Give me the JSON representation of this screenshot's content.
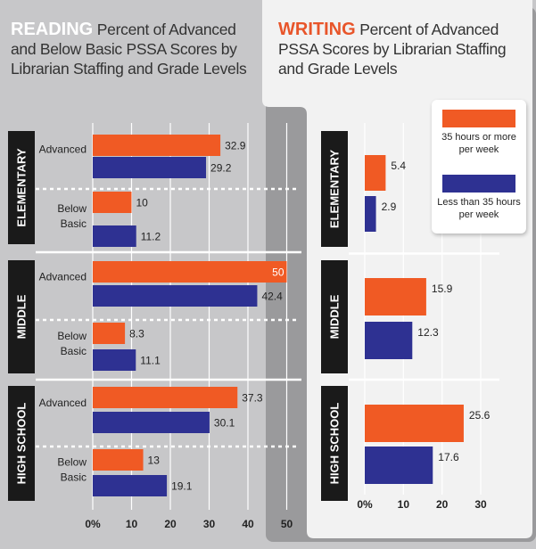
{
  "titles": {
    "reading_keyword": "READING",
    "reading_text": "Percent of Advanced and Below Basic PSSA Scores by Librarian Staffing and Grade Levels",
    "writing_keyword": "WRITING",
    "writing_text": "Percent of Advanced PSSA Scores by Librarian Staffing and Grade Levels"
  },
  "legend": {
    "items": [
      {
        "label": "35 hours or more per week",
        "color": "#f05a24"
      },
      {
        "label": "Less than 35 hours per week",
        "color": "#2e3192"
      }
    ]
  },
  "colors": {
    "orange": "#f05a24",
    "blue": "#2e3192",
    "background": "#c7c7c9",
    "writing_panel": "#f2f2f2",
    "band": "#1a1a1a",
    "grid": "#ffffff"
  },
  "chart_data": [
    {
      "type": "bar",
      "orientation": "horizontal",
      "title": "READING Percent of Advanced and Below Basic PSSA Scores by Librarian Staffing and Grade Levels",
      "xlim": [
        0,
        50
      ],
      "x_ticks": [
        "0%",
        "10",
        "20",
        "30",
        "40",
        "50"
      ],
      "grid": true,
      "groups": [
        {
          "name": "ELEMENTARY",
          "rows": [
            {
              "label": "Advanced",
              "values": [
                32.9,
                29.2
              ]
            },
            {
              "label": "Below Basic",
              "values": [
                10,
                11.2
              ]
            }
          ]
        },
        {
          "name": "MIDDLE",
          "rows": [
            {
              "label": "Advanced",
              "values": [
                50,
                42.4
              ]
            },
            {
              "label": "Below Basic",
              "values": [
                8.3,
                11.1
              ]
            }
          ]
        },
        {
          "name": "HIGH SCHOOL",
          "rows": [
            {
              "label": "Advanced",
              "values": [
                37.3,
                30.1
              ]
            },
            {
              "label": "Below Basic",
              "values": [
                13,
                19.1
              ]
            }
          ]
        }
      ],
      "series": [
        {
          "name": "35 hours or more per week",
          "color": "#f05a24"
        },
        {
          "name": "Less than 35 hours per week",
          "color": "#2e3192"
        }
      ],
      "value_labels": [
        [
          "32.9",
          "29.2",
          "10",
          "11.2"
        ],
        [
          "50",
          "42.4",
          "8.3",
          "11.1"
        ],
        [
          "37.3",
          "30.1",
          "13",
          "19.1"
        ]
      ]
    },
    {
      "type": "bar",
      "orientation": "horizontal",
      "title": "WRITING Percent of Advanced PSSA Scores by Librarian Staffing and Grade Levels",
      "xlim": [
        0,
        30
      ],
      "x_ticks": [
        "0%",
        "10",
        "20",
        "30"
      ],
      "grid": true,
      "legend_position": "top-right",
      "groups": [
        {
          "name": "ELEMENTARY",
          "values": [
            5.4,
            2.9
          ]
        },
        {
          "name": "MIDDLE",
          "values": [
            15.9,
            12.3
          ]
        },
        {
          "name": "HIGH SCHOOL",
          "values": [
            25.6,
            17.6
          ]
        }
      ],
      "series": [
        {
          "name": "35 hours or more per week",
          "color": "#f05a24"
        },
        {
          "name": "Less than 35 hours per week",
          "color": "#2e3192"
        }
      ],
      "value_labels": [
        [
          "5.4",
          "2.9"
        ],
        [
          "15.9",
          "12.3"
        ],
        [
          "25.6",
          "17.6"
        ]
      ]
    }
  ]
}
